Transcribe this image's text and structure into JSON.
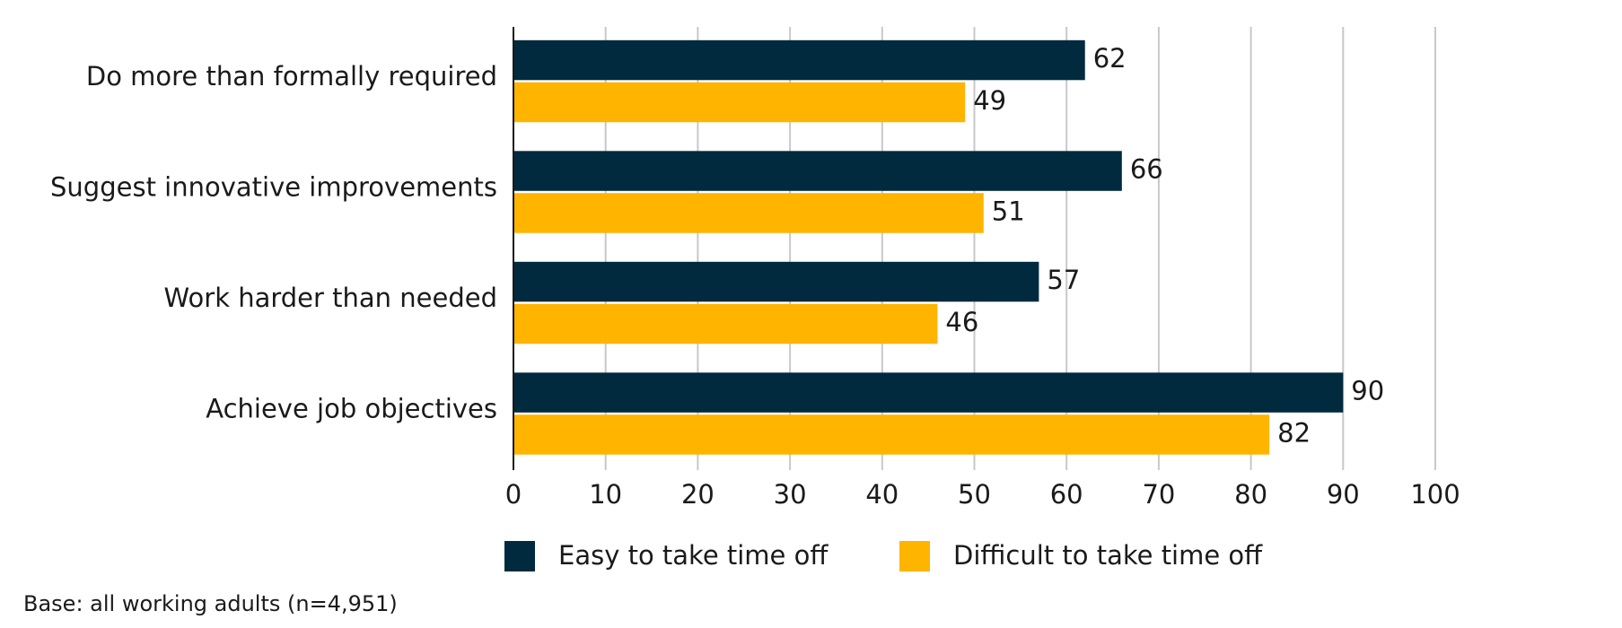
{
  "chart_data": {
    "type": "hbar",
    "categories": [
      "Do more than formally required",
      "Suggest innovative improvements",
      "Work harder than needed",
      "Achieve job objectives"
    ],
    "series": [
      {
        "name": "Easy to take time off",
        "color": "#022a3e",
        "values": [
          62,
          66,
          57,
          90
        ]
      },
      {
        "name": "Difficult to take time off",
        "color": "#ffb400",
        "values": [
          49,
          51,
          46,
          82
        ]
      }
    ],
    "xlim": [
      0,
      100
    ],
    "xticks": [
      0,
      10,
      20,
      30,
      40,
      50,
      60,
      70,
      80,
      90,
      100
    ],
    "grid": true,
    "legend": "bottom",
    "note": "Base: all working adults (n=4,951)"
  }
}
